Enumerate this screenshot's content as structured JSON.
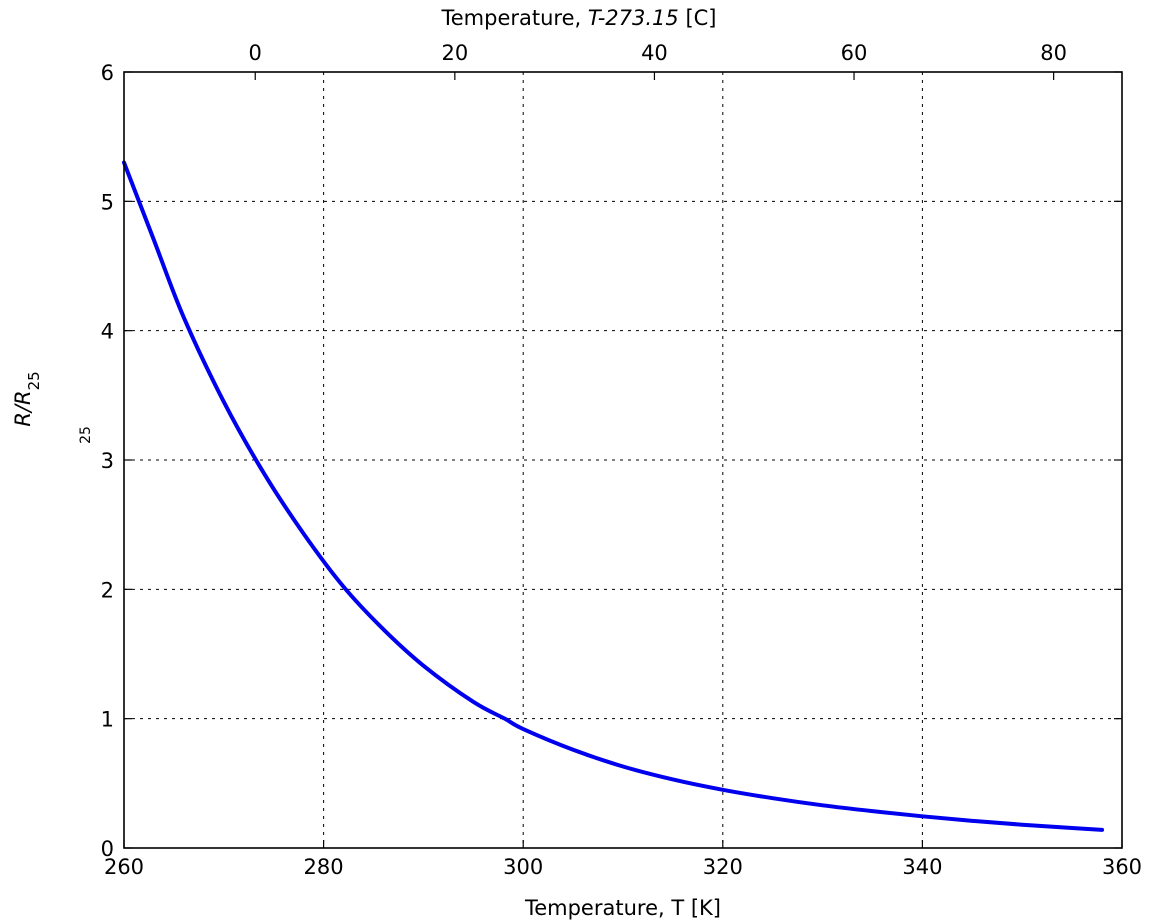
{
  "chart_data": {
    "type": "line",
    "xlabel": "Temperature, T [K]",
    "xlabel_top": {
      "prefix": "Temperature, ",
      "italic": "T-273.15",
      "suffix": " [C]"
    },
    "ylabel": {
      "main": "R/R",
      "subscript": "25",
      "extra": "25"
    },
    "xlim": [
      260,
      360
    ],
    "ylim": [
      0,
      6
    ],
    "top_xlim": [
      -13.15,
      86.85
    ],
    "x_ticks": [
      260,
      280,
      300,
      320,
      340,
      360
    ],
    "x_tick_labels": [
      "260",
      "280",
      "300",
      "320",
      "340",
      "360"
    ],
    "top_x_ticks": [
      0,
      20,
      40,
      60,
      80
    ],
    "top_x_tick_labels": [
      "0",
      "20",
      "40",
      "60",
      "80"
    ],
    "y_ticks": [
      0,
      1,
      2,
      3,
      4,
      5,
      6
    ],
    "y_tick_labels": [
      "0",
      "1",
      "2",
      "3",
      "4",
      "5",
      "6"
    ],
    "grid": true,
    "series": [
      {
        "color": "#0000ee",
        "x": [
          260,
          263,
          266,
          270,
          274,
          278,
          282,
          286,
          290,
          295,
          298.15,
          300,
          305,
          310,
          315,
          320,
          325,
          330,
          335,
          340,
          345,
          350,
          355,
          358
        ],
        "y": [
          5.3,
          4.7,
          4.1,
          3.45,
          2.9,
          2.43,
          2.02,
          1.69,
          1.41,
          1.13,
          1.0,
          0.92,
          0.76,
          0.63,
          0.53,
          0.45,
          0.385,
          0.33,
          0.285,
          0.245,
          0.21,
          0.18,
          0.155,
          0.14
        ]
      }
    ]
  }
}
